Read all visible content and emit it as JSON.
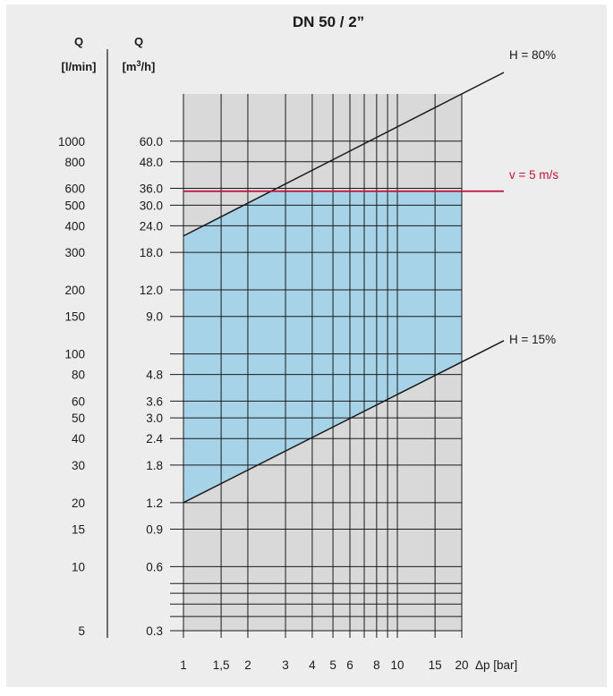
{
  "chart_data": {
    "type": "line",
    "title": "DN 50 / 2”",
    "xlabel": "Δp [bar]",
    "x_scale": "log",
    "xlim": [
      1,
      20
    ],
    "x_ticks": [
      1,
      1.5,
      2,
      3,
      4,
      5,
      6,
      8,
      10,
      15,
      20
    ],
    "x_tick_labels": [
      "1",
      "1,5",
      "2",
      "3",
      "4",
      "5",
      "6",
      "8",
      "10",
      "15",
      "20"
    ],
    "x_gridlines": [
      1,
      1.5,
      2,
      3,
      4,
      5,
      6,
      7,
      8,
      9,
      10,
      15,
      20
    ],
    "y_scale": "log",
    "ylim_m3h": [
      0.3,
      100
    ],
    "ylabel_left": {
      "symbol": "Q",
      "unit": "[l/min]"
    },
    "ylabel_right": {
      "symbol": "Q",
      "unit_prefix": "[m",
      "unit_sup": "3",
      "unit_suffix": "/h]"
    },
    "y_ticks_m3h": [
      60,
      48,
      36,
      30,
      24,
      18,
      12,
      9,
      6,
      4.8,
      3.6,
      3,
      2.4,
      1.8,
      1.2,
      0.9,
      0.6,
      0.3
    ],
    "y_tick_labels_m3h": [
      "60.0",
      "48.0",
      "36.0",
      "30.0",
      "24.0",
      "18.0",
      "12.0",
      "9.0",
      "",
      "4.8",
      "3.6",
      "3.0",
      "2.4",
      "1.8",
      "1.2",
      "0.9",
      "0.6",
      "0.3"
    ],
    "y_ticks_lmin": [
      1000,
      800,
      600,
      500,
      400,
      300,
      200,
      150,
      100,
      80,
      60,
      50,
      40,
      30,
      20,
      15,
      10,
      5
    ],
    "y_gridlines_m3h": [
      60,
      48,
      36,
      30,
      24,
      18,
      12,
      9,
      6,
      4.8,
      3.6,
      3,
      2.4,
      1.8,
      1.2,
      0.9,
      0.6,
      0.5,
      0.45,
      0.4,
      0.35,
      0.3
    ],
    "series": [
      {
        "name": "H = 80%",
        "x": [
          1,
          20
        ],
        "y": [
          21.5,
          100
        ],
        "color": "#1a1a1a"
      },
      {
        "name": "v = 5 m/s",
        "x": [
          1,
          20
        ],
        "y": [
          34.9,
          34.9
        ],
        "color": "#c0103a"
      },
      {
        "name": "H = 15%",
        "x": [
          1,
          20
        ],
        "y": [
          1.2,
          5.5
        ],
        "color": "#1a1a1a"
      }
    ],
    "shaded_region": {
      "color": "#a6d3e8",
      "bounded_by": [
        "H = 15%",
        "H = 80%",
        "v = 5 m/s"
      ]
    },
    "plot_background": "#d9d9d9",
    "grid": true,
    "legend": "none"
  }
}
